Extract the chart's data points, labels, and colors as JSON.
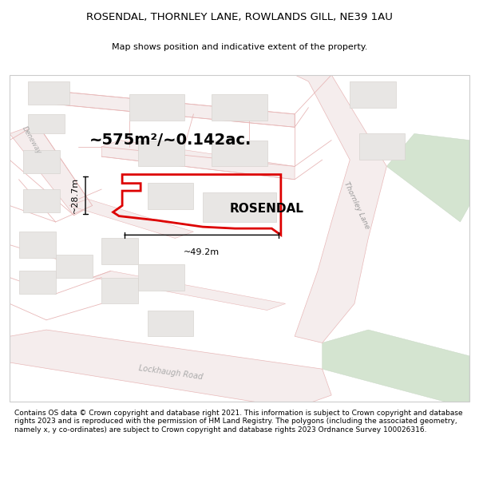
{
  "title": "ROSENDAL, THORNLEY LANE, ROWLANDS GILL, NE39 1AU",
  "subtitle": "Map shows position and indicative extent of the property.",
  "footer": "Contains OS data © Crown copyright and database right 2021. This information is subject to Crown copyright and database rights 2023 and is reproduced with the permission of HM Land Registry. The polygons (including the associated geometry, namely x, y co-ordinates) are subject to Crown copyright and database rights 2023 Ordnance Survey 100026316.",
  "map_bg": "#ffffff",
  "road_fill": "#f5eded",
  "road_line": "#e8b8b8",
  "road_line_lw": 0.7,
  "building_fill": "#e8e6e4",
  "building_stroke": "#d8d4d0",
  "green_fill": "#d4e4d0",
  "green_stroke": "#c4d4c0",
  "property_color": "#dd0000",
  "area_text": "~575m²/~0.142ac.",
  "property_name": "ROSENDAL",
  "dim_width_text": "~49.2m",
  "dim_height_text": "~28.7m",
  "road_label_thornley": "Thornley Lane",
  "road_label_lockhaugh": "Lockhaugh Road",
  "road_label_deneway": "Deneway",
  "title_fontsize": 9.5,
  "subtitle_fontsize": 8.0,
  "footer_fontsize": 6.5
}
